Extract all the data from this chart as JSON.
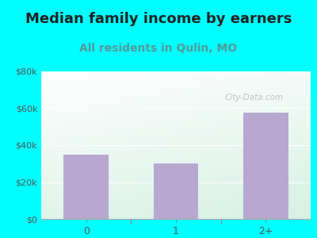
{
  "title": "Median family income by earners",
  "subtitle": "All residents in Qulin, MO",
  "categories": [
    "0",
    "1",
    "2+"
  ],
  "values": [
    35000,
    30000,
    57500
  ],
  "bar_color": "#b8a8d0",
  "background_outer": "#00ffff",
  "plot_bg_top_left": "#ffffff",
  "plot_bg_bottom_right": "#cceedd",
  "ylim": [
    0,
    80000
  ],
  "yticks": [
    0,
    20000,
    40000,
    60000,
    80000
  ],
  "ytick_labels": [
    "$0",
    "$20k",
    "$40k",
    "$60k",
    "$80k"
  ],
  "title_fontsize": 13,
  "subtitle_fontsize": 10,
  "tick_color": "#555555",
  "subtitle_color": "#559999",
  "watermark": "City-Data.com",
  "grid_color": "#ccddcc"
}
